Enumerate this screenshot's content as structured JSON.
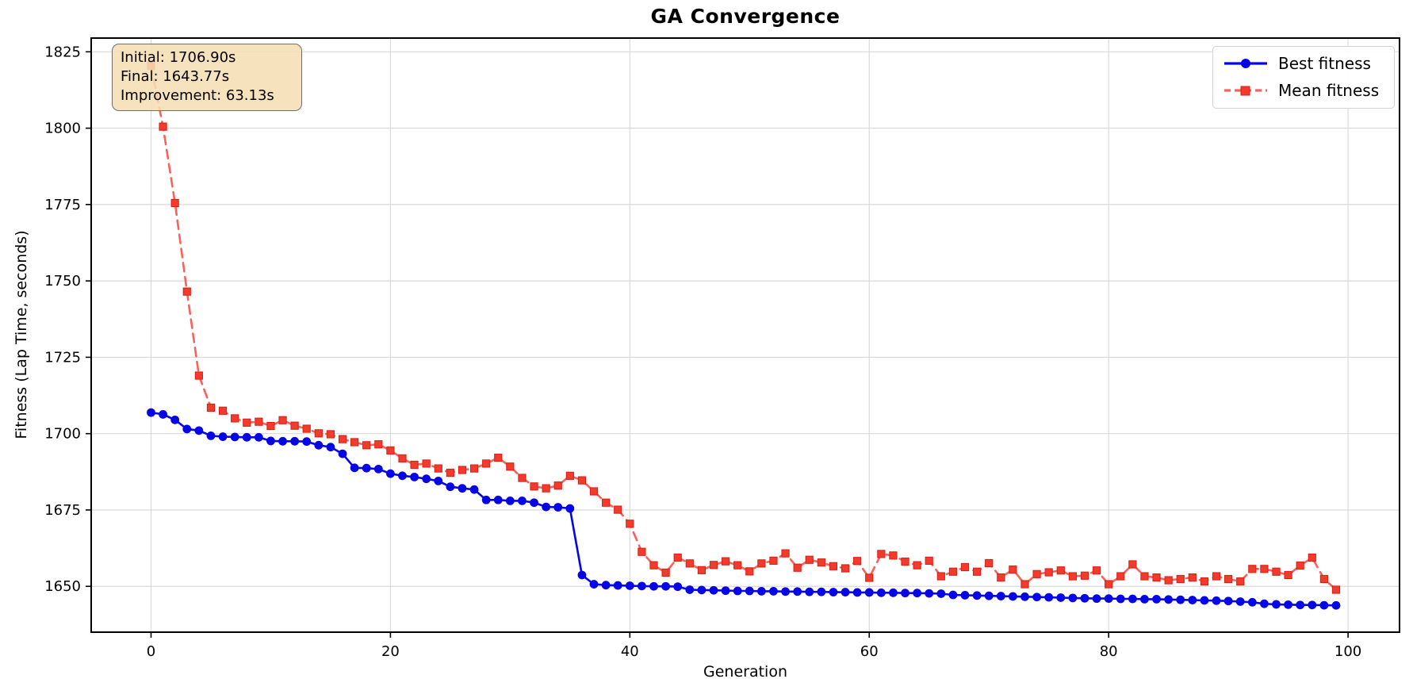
{
  "chart_data": {
    "type": "line",
    "title": "GA Convergence",
    "xlabel": "Generation",
    "ylabel": "Fitness (Lap Time, seconds)",
    "grid": true,
    "legend_position": "upper right",
    "xlim": [
      -5,
      104.3
    ],
    "ylim": [
      1635,
      1829.5
    ],
    "x_ticks": [
      0,
      20,
      40,
      60,
      80,
      100
    ],
    "y_ticks": [
      1650,
      1675,
      1700,
      1725,
      1750,
      1775,
      1800,
      1825
    ],
    "x": [
      0,
      1,
      2,
      3,
      4,
      5,
      6,
      7,
      8,
      9,
      10,
      11,
      12,
      13,
      14,
      15,
      16,
      17,
      18,
      19,
      20,
      21,
      22,
      23,
      24,
      25,
      26,
      27,
      28,
      29,
      30,
      31,
      32,
      33,
      34,
      35,
      36,
      37,
      38,
      39,
      40,
      41,
      42,
      43,
      44,
      45,
      46,
      47,
      48,
      49,
      50,
      51,
      52,
      53,
      54,
      55,
      56,
      57,
      58,
      59,
      60,
      61,
      62,
      63,
      64,
      65,
      66,
      67,
      68,
      69,
      70,
      71,
      72,
      73,
      74,
      75,
      76,
      77,
      78,
      79,
      80,
      81,
      82,
      83,
      84,
      85,
      86,
      87,
      88,
      89,
      90,
      91,
      92,
      93,
      94,
      95,
      96,
      97,
      98,
      99
    ],
    "series": [
      {
        "name": "Mean fitness",
        "linestyle": "dashed",
        "marker": "square",
        "line_color": "#f8625a",
        "marker_color": "#f03b2d",
        "marker_edge": "#dd1d12",
        "values": [
          1820.5,
          1800.5,
          1775.5,
          1746.5,
          1719.0,
          1708.5,
          1707.5,
          1705.0,
          1703.6,
          1703.9,
          1702.5,
          1704.4,
          1702.6,
          1701.6,
          1700.1,
          1699.8,
          1698.2,
          1697.2,
          1696.2,
          1696.5,
          1694.5,
          1691.9,
          1689.8,
          1690.2,
          1688.6,
          1687.2,
          1688.1,
          1688.6,
          1690.2,
          1692.1,
          1689.2,
          1685.5,
          1682.7,
          1682.1,
          1683.0,
          1686.2,
          1684.7,
          1681.1,
          1677.4,
          1675.1,
          1670.5,
          1661.3,
          1656.9,
          1654.5,
          1659.4,
          1657.5,
          1655.3,
          1657.0,
          1658.2,
          1656.9,
          1654.9,
          1657.5,
          1658.4,
          1660.8,
          1656.1,
          1658.7,
          1657.8,
          1656.6,
          1655.9,
          1658.3,
          1652.8,
          1660.6,
          1660.1,
          1658.1,
          1656.9,
          1658.4,
          1653.3,
          1654.8,
          1656.3,
          1654.8,
          1657.6,
          1652.9,
          1655.5,
          1650.7,
          1654.0,
          1654.6,
          1655.2,
          1653.3,
          1653.5,
          1655.2,
          1650.7,
          1653.3,
          1657.2,
          1653.3,
          1652.9,
          1652.0,
          1652.4,
          1652.9,
          1651.6,
          1653.3,
          1652.4,
          1651.6,
          1655.7,
          1655.7,
          1654.8,
          1653.7,
          1656.8,
          1659.4,
          1652.4,
          1648.9
        ]
      },
      {
        "name": "Best fitness",
        "linestyle": "solid",
        "marker": "circle",
        "line_color": "#0505e6",
        "marker_color": "#0505e6",
        "marker_edge": "#0505e6",
        "values": [
          1706.9,
          1706.3,
          1704.5,
          1701.5,
          1701.0,
          1699.3,
          1699.0,
          1698.9,
          1698.8,
          1698.8,
          1697.6,
          1697.5,
          1697.5,
          1697.4,
          1696.2,
          1695.6,
          1693.4,
          1688.8,
          1688.7,
          1688.4,
          1686.9,
          1686.2,
          1685.8,
          1685.2,
          1684.5,
          1682.6,
          1682.1,
          1681.7,
          1678.3,
          1678.3,
          1678.0,
          1678.0,
          1677.4,
          1676.0,
          1675.9,
          1675.5,
          1653.7,
          1650.7,
          1650.4,
          1650.3,
          1650.2,
          1650.1,
          1650.0,
          1650.0,
          1649.9,
          1648.9,
          1648.8,
          1648.7,
          1648.6,
          1648.5,
          1648.5,
          1648.4,
          1648.4,
          1648.3,
          1648.3,
          1648.2,
          1648.2,
          1648.1,
          1648.1,
          1648.0,
          1648.0,
          1647.9,
          1647.9,
          1647.8,
          1647.8,
          1647.7,
          1647.6,
          1647.2,
          1647.1,
          1647.0,
          1646.9,
          1646.8,
          1646.7,
          1646.6,
          1646.5,
          1646.4,
          1646.3,
          1646.2,
          1646.1,
          1646.0,
          1646.0,
          1645.9,
          1645.9,
          1645.8,
          1645.8,
          1645.7,
          1645.6,
          1645.5,
          1645.4,
          1645.3,
          1645.2,
          1645.0,
          1644.8,
          1644.3,
          1644.1,
          1644.0,
          1643.9,
          1643.9,
          1643.8,
          1643.77
        ]
      }
    ]
  },
  "legend": {
    "items": [
      {
        "label": "Best fitness"
      },
      {
        "label": "Mean fitness"
      }
    ]
  },
  "annotation": {
    "lines": [
      "Initial: 1706.90s",
      "Final: 1643.77s",
      "Improvement: 63.13s"
    ]
  },
  "colors": {
    "best": "#0505e6",
    "mean_line": "#f8625a",
    "mean_marker": "#f03b2d",
    "grid": "#d9d9d9",
    "spine": "#000000",
    "annotation_bg": "#f5deb3",
    "annotation_border": "#6e6e6e"
  }
}
